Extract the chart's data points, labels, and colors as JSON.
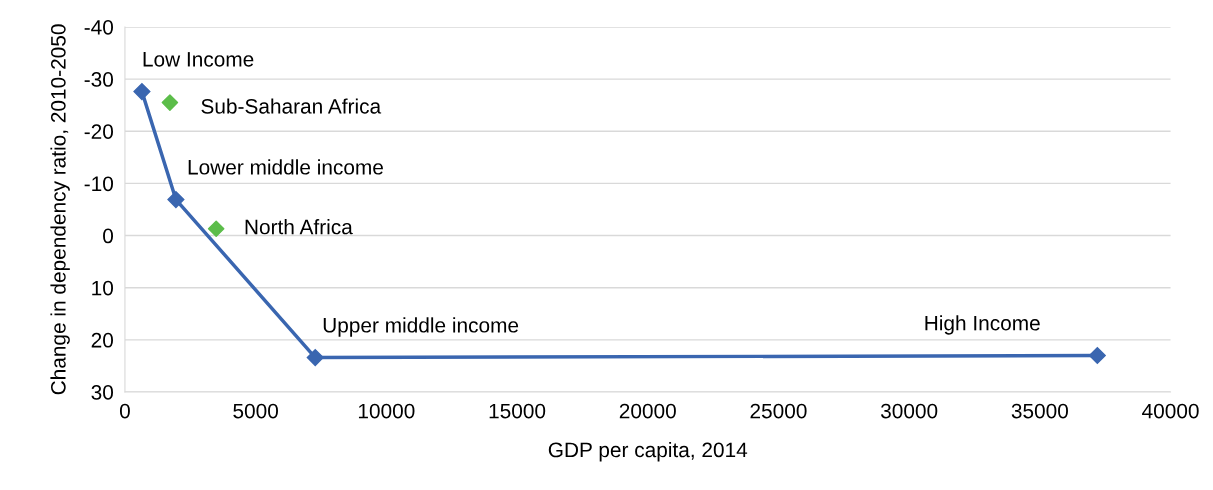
{
  "chart_data": {
    "type": "line",
    "xlabel": "GDP per capita, 2014",
    "ylabel": "Change in dependency ratio, 2010-2050",
    "xlim": [
      0,
      40000
    ],
    "xticks": [
      0,
      5000,
      10000,
      15000,
      20000,
      25000,
      30000,
      35000,
      40000
    ],
    "ylim": [
      30,
      -40
    ],
    "yticks": [
      -40,
      -30,
      -20,
      -10,
      0,
      10,
      20,
      30
    ],
    "grid": "y",
    "marker": "diamond",
    "line_style": "solid",
    "series": [
      {
        "color": "#3a66b0",
        "x": [
          650,
          1950,
          7280,
          37200
        ],
        "values": [
          -27.6,
          -6.9,
          23.4,
          23.0
        ]
      },
      {
        "type": "scatter",
        "color": "#5cbd4a",
        "x": [
          1720,
          3490
        ],
        "values": [
          -25.5,
          -1.3
        ]
      }
    ],
    "annotations": [
      {
        "text": "Low Income",
        "x": 650,
        "y": -27.6
      },
      {
        "text": "Sub-Saharan Africa",
        "x": 1720,
        "y": -25.5
      },
      {
        "text": "Lower middle income",
        "x": 1950,
        "y": -6.9
      },
      {
        "text": "North Africa",
        "x": 3490,
        "y": -1.3
      },
      {
        "text": "Upper middle income",
        "x": 7280,
        "y": 23.4
      },
      {
        "text": "High Income",
        "x": 37200,
        "y": 23.0
      }
    ]
  }
}
